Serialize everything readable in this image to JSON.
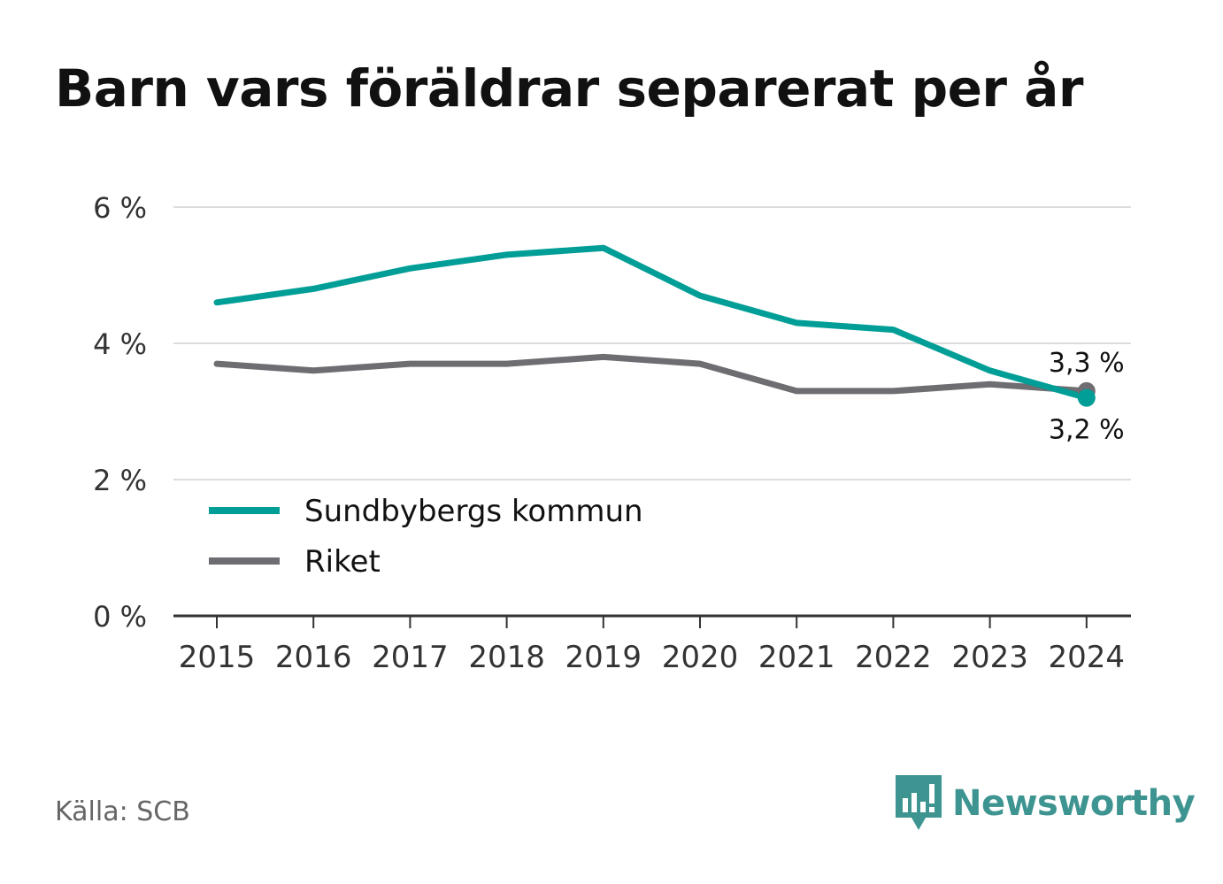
{
  "title": "Barn vars föräldrar separerat per år",
  "source": "Källa: SCB",
  "logo": {
    "name": "Newsworthy",
    "color": "#3d9490"
  },
  "chart_data": {
    "type": "line",
    "x": [
      "2015",
      "2016",
      "2017",
      "2018",
      "2019",
      "2020",
      "2021",
      "2022",
      "2023",
      "2024"
    ],
    "ylim": [
      0,
      6
    ],
    "yticks": [
      0,
      2,
      4,
      6
    ],
    "ytick_labels": [
      "0 %",
      "2 %",
      "4 %",
      "6 %"
    ],
    "grid": true,
    "legend_position": "bottom-left",
    "series": [
      {
        "name": "Sundbybergs kommun",
        "color": "#009e96",
        "values": [
          4.6,
          4.8,
          5.1,
          5.3,
          5.4,
          4.7,
          4.3,
          4.2,
          3.6,
          3.2
        ],
        "end_label": "3,2 %"
      },
      {
        "name": "Riket",
        "color": "#6d6d72",
        "values": [
          3.7,
          3.6,
          3.7,
          3.7,
          3.8,
          3.7,
          3.3,
          3.3,
          3.4,
          3.3
        ],
        "end_label": "3,3 %"
      }
    ]
  }
}
